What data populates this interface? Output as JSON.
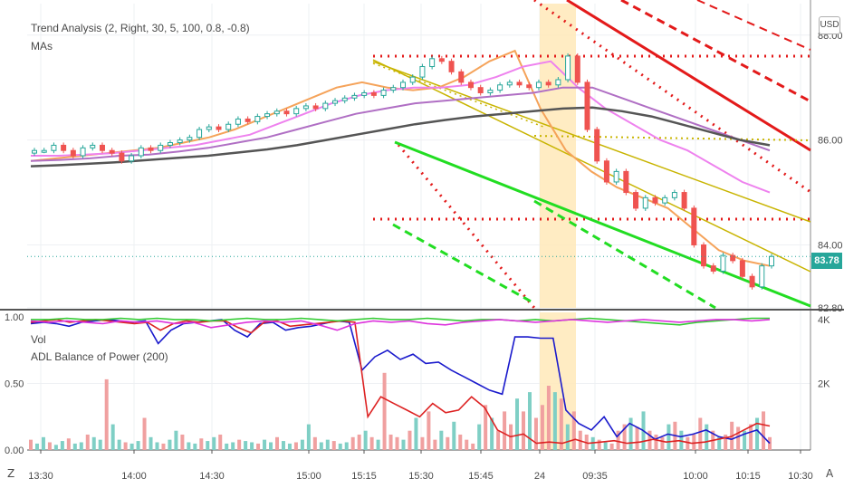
{
  "legend": {
    "study1": "Trend Analysis (2, Right, 30, 5, 100, 0.8, -0.8)",
    "study2": "MAs",
    "vol": "Vol",
    "adl": "ADL Balance of Power (200)"
  },
  "currency": "USD",
  "last_price": "83.78",
  "colors": {
    "up": "#26a69a",
    "down": "#ef5350",
    "red_channel": "#e31a1a",
    "green_channel": "#22dd22",
    "olive": "#c8b400",
    "highlight": "#ffe9b8",
    "ma_orange": "#f5a35a",
    "ma_pink": "#ee82ee",
    "ma_purple": "#b06fc4",
    "ma_gray": "#555555",
    "bop_blue": "#1a1acc",
    "bop_red": "#dd2222",
    "bop_green": "#33cc33",
    "bop_magenta": "#dd33dd"
  },
  "left_axis_labels": [
    "1.00",
    "0.50",
    "0.00"
  ],
  "bottom_left_icon": "Z",
  "bottom_right_icon": "A",
  "chart_data": [
    {
      "type": "candlestick",
      "title": "Trend Analysis (2, Right, 30, 5, 100, 0.8, -0.8)",
      "y_ticks": [
        "88.00",
        "86.00",
        "84.00",
        "82.80"
      ],
      "ylim": [
        82.8,
        88.6
      ],
      "x_ticks": [
        "13:30",
        "14:00",
        "14:30",
        "15:00",
        "15:15",
        "15:30",
        "15:45",
        "24",
        "09:35",
        "10:00",
        "10:15",
        "10:30"
      ],
      "session_break_label": "24",
      "closes": [
        85.8,
        85.8,
        85.9,
        85.8,
        85.7,
        85.85,
        85.9,
        85.8,
        85.75,
        85.6,
        85.7,
        85.85,
        85.8,
        85.9,
        85.95,
        86.0,
        86.05,
        86.2,
        86.25,
        86.2,
        86.3,
        86.4,
        86.35,
        86.45,
        86.5,
        86.55,
        86.5,
        86.6,
        86.65,
        86.6,
        86.7,
        86.75,
        86.8,
        86.85,
        86.9,
        86.85,
        86.95,
        87.0,
        87.1,
        87.2,
        87.4,
        87.55,
        87.5,
        87.3,
        87.1,
        87.0,
        86.9,
        86.95,
        87.05,
        87.1,
        87.05,
        87.0,
        87.1,
        87.05,
        87.15,
        87.6,
        87.1,
        86.2,
        85.6,
        85.2,
        85.4,
        85.0,
        84.7,
        84.9,
        84.8,
        84.9,
        85.0,
        84.7,
        84.0,
        83.6,
        83.5,
        83.8,
        83.7,
        83.4,
        83.2,
        83.6,
        83.78
      ],
      "moving_averages": [
        {
          "name": "MA orange",
          "color": "#f5a35a",
          "values": [
            85.6,
            85.65,
            85.7,
            85.75,
            85.8,
            85.85,
            85.95,
            86.05,
            86.2,
            86.4,
            86.6,
            86.8,
            87.0,
            87.1,
            87.0,
            86.95,
            87.0,
            87.2,
            87.5,
            87.7,
            86.6,
            85.8,
            85.4,
            85.1,
            84.9,
            84.7,
            84.3,
            83.9,
            83.7,
            83.6
          ]
        },
        {
          "name": "MA pink",
          "color": "#ee82ee",
          "values": [
            85.7,
            85.7,
            85.72,
            85.75,
            85.8,
            85.85,
            85.9,
            86.0,
            86.1,
            86.3,
            86.5,
            86.7,
            86.85,
            86.95,
            87.0,
            87.0,
            87.05,
            87.2,
            87.4,
            87.5,
            87.0,
            86.6,
            86.3,
            86.0,
            85.8,
            85.5,
            85.2,
            85.0
          ]
        },
        {
          "name": "MA purple",
          "color": "#b06fc4",
          "values": [
            85.6,
            85.62,
            85.65,
            85.7,
            85.72,
            85.78,
            85.85,
            85.95,
            86.05,
            86.2,
            86.35,
            86.5,
            86.6,
            86.7,
            86.75,
            86.8,
            86.85,
            86.9,
            87.0,
            87.0,
            86.8,
            86.6,
            86.4,
            86.2,
            86.0,
            85.8
          ]
        },
        {
          "name": "MA gray",
          "color": "#555555",
          "values": [
            85.5,
            85.52,
            85.55,
            85.58,
            85.62,
            85.66,
            85.7,
            85.76,
            85.82,
            85.9,
            86.0,
            86.1,
            86.2,
            86.3,
            86.38,
            86.45,
            86.5,
            86.55,
            86.6,
            86.62,
            86.55,
            86.45,
            86.3,
            86.15,
            86.0,
            85.9
          ]
        }
      ]
    },
    {
      "type": "bar+line",
      "title": "ADL Balance of Power (200)",
      "y_ticks_left": [
        "1.00",
        "0.50",
        "0.00"
      ],
      "y_ticks_right": [
        "4K",
        "2K"
      ],
      "ylim": [
        0,
        1
      ],
      "volume_series": [
        0.08,
        0.05,
        0.1,
        0.06,
        0.04,
        0.07,
        0.09,
        0.05,
        0.06,
        0.12,
        0.1,
        0.08,
        0.55,
        0.2,
        0.08,
        0.06,
        0.05,
        0.07,
        0.25,
        0.1,
        0.06,
        0.05,
        0.08,
        0.15,
        0.12,
        0.06,
        0.05,
        0.09,
        0.07,
        0.1,
        0.12,
        0.05,
        0.06,
        0.08,
        0.07,
        0.06,
        0.05,
        0.08,
        0.06,
        0.1,
        0.07,
        0.05,
        0.06,
        0.08,
        0.2,
        0.1,
        0.06,
        0.08,
        0.07,
        0.05,
        0.06,
        0.1,
        0.12,
        0.15,
        0.1,
        0.08,
        0.6,
        0.12,
        0.1,
        0.08,
        0.15,
        0.25,
        0.1,
        0.3,
        0.08,
        0.15,
        0.1,
        0.22,
        0.12,
        0.08,
        0.05,
        0.2,
        0.35,
        0.25,
        0.15,
        0.3,
        0.2,
        0.4,
        0.3,
        0.45,
        0.25,
        0.35,
        0.5,
        0.45,
        0.4,
        0.2,
        0.3,
        0.15,
        0.12,
        0.1,
        0.08,
        0.06,
        0.05,
        0.15,
        0.2,
        0.25,
        0.18,
        0.3,
        0.15,
        0.12,
        0.1,
        0.2,
        0.22,
        0.15,
        0.1,
        0.12,
        0.25,
        0.2,
        0.15,
        0.1,
        0.12,
        0.22,
        0.18,
        0.15,
        0.2,
        0.25,
        0.3,
        0.1
      ],
      "series": [
        {
          "name": "ADL blue",
          "color": "#1a1acc",
          "values": [
            0.95,
            0.96,
            0.95,
            0.93,
            0.96,
            0.97,
            0.98,
            0.97,
            0.96,
            0.97,
            0.8,
            0.9,
            0.95,
            0.96,
            0.97,
            0.98,
            0.9,
            0.85,
            0.95,
            0.96,
            0.9,
            0.92,
            0.93,
            0.95,
            0.97,
            0.96,
            0.6,
            0.7,
            0.75,
            0.68,
            0.72,
            0.65,
            0.66,
            0.6,
            0.55,
            0.5,
            0.45,
            0.42,
            0.85,
            0.85,
            0.84,
            0.84,
            0.3,
            0.2,
            0.15,
            0.25,
            0.1,
            0.2,
            0.15,
            0.08,
            0.12,
            0.1,
            0.12,
            0.15,
            0.1,
            0.08,
            0.12,
            0.15,
            0.05
          ]
        },
        {
          "name": "ADL red",
          "color": "#dd2222",
          "values": [
            0.96,
            0.97,
            0.98,
            0.96,
            0.97,
            0.98,
            0.97,
            0.96,
            0.95,
            0.96,
            0.9,
            0.95,
            0.97,
            0.96,
            0.97,
            0.97,
            0.92,
            0.88,
            0.96,
            0.97,
            0.93,
            0.94,
            0.95,
            0.96,
            0.97,
            0.96,
            0.25,
            0.4,
            0.35,
            0.3,
            0.25,
            0.35,
            0.28,
            0.3,
            0.4,
            0.32,
            0.15,
            0.1,
            0.12,
            0.05,
            0.06,
            0.05,
            0.08,
            0.05,
            0.06,
            0.07,
            0.05,
            0.06,
            0.08,
            0.06,
            0.07,
            0.05,
            0.06,
            0.08,
            0.1,
            0.15,
            0.2,
            0.18
          ]
        },
        {
          "name": "ADL green",
          "color": "#33cc33",
          "values": [
            0.98,
            0.98,
            0.99,
            0.98,
            0.98,
            0.99,
            0.98,
            0.99,
            0.98,
            0.98,
            0.97,
            0.98,
            0.99,
            0.98,
            0.98,
            0.99,
            0.98,
            0.97,
            0.98,
            0.99,
            0.98,
            0.98,
            0.99,
            0.98,
            0.97,
            0.98,
            0.98,
            0.97,
            0.98,
            0.97,
            0.98,
            0.99,
            0.98,
            0.97,
            0.96,
            0.95,
            0.94,
            0.96,
            0.97,
            0.98,
            0.99,
            0.99
          ]
        },
        {
          "name": "ADL magenta",
          "color": "#dd33dd",
          "values": [
            0.97,
            0.96,
            0.97,
            0.96,
            0.95,
            0.97,
            0.96,
            0.97,
            0.95,
            0.96,
            0.92,
            0.94,
            0.96,
            0.97,
            0.96,
            0.97,
            0.94,
            0.9,
            0.95,
            0.97,
            0.96,
            0.97,
            0.95,
            0.94,
            0.96,
            0.97,
            0.98,
            0.97,
            0.96,
            0.97,
            0.98,
            0.97,
            0.96,
            0.97,
            0.98,
            0.97,
            0.96,
            0.97,
            0.98,
            0.98,
            0.97,
            0.98
          ]
        }
      ]
    }
  ]
}
